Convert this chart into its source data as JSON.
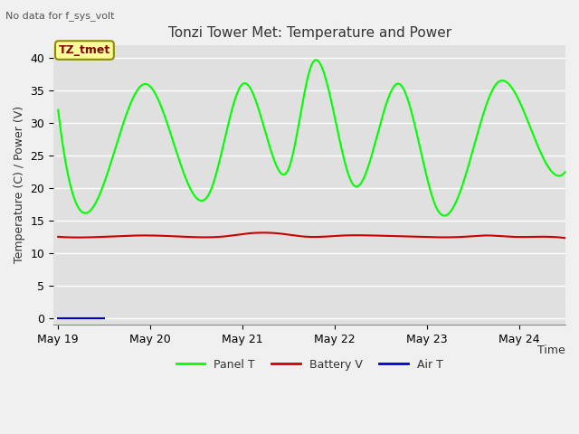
{
  "title": "Tonzi Tower Met: Temperature and Power",
  "top_left_text": "No data for f_sys_volt",
  "ylabel": "Temperature (C) / Power (V)",
  "xlabel": "Time",
  "legend_label": "TZ_tmet",
  "ylim": [
    -1,
    42
  ],
  "yticks": [
    0,
    5,
    10,
    15,
    20,
    25,
    30,
    35,
    40
  ],
  "xtick_labels": [
    "May 19",
    "May 20",
    "May 21",
    "May 22",
    "May 23",
    "May 24"
  ],
  "background_color": "#e0e0e0",
  "fig_bg_color": "#f0f0f0",
  "panel_t_color": "#00ff00",
  "battery_v_color": "#cc0000",
  "air_t_color": "#0000cc",
  "x_day_positions": [
    0,
    1,
    2,
    3,
    4,
    5
  ],
  "x_range": [
    -0.05,
    5.5
  ],
  "grid_color": "#ffffff",
  "title_fontsize": 11,
  "tick_fontsize": 9,
  "ylabel_fontsize": 9
}
